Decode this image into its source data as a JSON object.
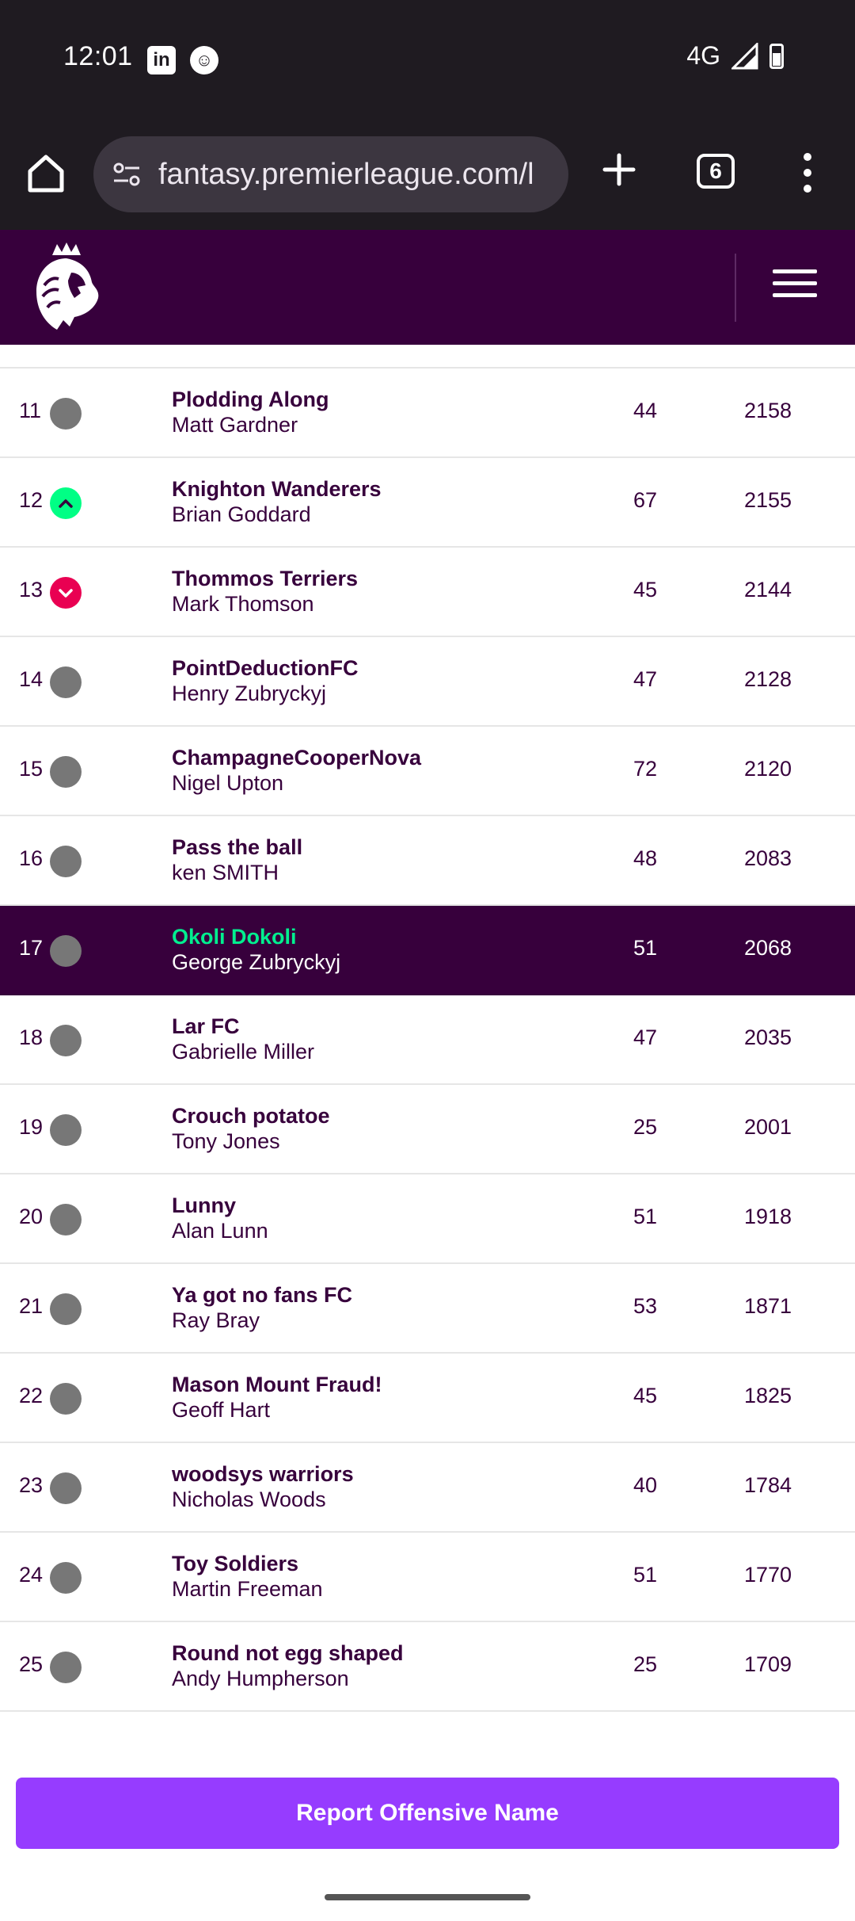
{
  "status_bar": {
    "time": "12:01",
    "notification_icons": [
      "linkedin-icon",
      "face-icon"
    ],
    "network": "4G"
  },
  "browser": {
    "url": "fantasy.premierleague.com/l",
    "tab_count": "6"
  },
  "league": {
    "rows": [
      {
        "rank": "11",
        "movement": "same",
        "team": "Plodding Along",
        "manager": "Matt Gardner",
        "gw": "44",
        "total": "2158"
      },
      {
        "rank": "12",
        "movement": "up",
        "team": "Knighton Wanderers",
        "manager": "Brian Goddard",
        "gw": "67",
        "total": "2155"
      },
      {
        "rank": "13",
        "movement": "down",
        "team": "Thommos Terriers",
        "manager": "Mark Thomson",
        "gw": "45",
        "total": "2144"
      },
      {
        "rank": "14",
        "movement": "same",
        "team": "PointDeductionFC",
        "manager": "Henry Zubryckyj",
        "gw": "47",
        "total": "2128"
      },
      {
        "rank": "15",
        "movement": "same",
        "team": "ChampagneCooperNova",
        "manager": "Nigel Upton",
        "gw": "72",
        "total": "2120"
      },
      {
        "rank": "16",
        "movement": "same",
        "team": "Pass the ball",
        "manager": "ken SMITH",
        "gw": "48",
        "total": "2083"
      },
      {
        "rank": "17",
        "movement": "same",
        "team": "Okoli Dokoli",
        "manager": "George Zubryckyj",
        "gw": "51",
        "total": "2068",
        "highlight": true
      },
      {
        "rank": "18",
        "movement": "same",
        "team": "Lar FC",
        "manager": "Gabrielle Miller",
        "gw": "47",
        "total": "2035"
      },
      {
        "rank": "19",
        "movement": "same",
        "team": "Crouch potatoe",
        "manager": "Tony Jones",
        "gw": "25",
        "total": "2001"
      },
      {
        "rank": "20",
        "movement": "same",
        "team": "Lunny",
        "manager": "Alan Lunn",
        "gw": "51",
        "total": "1918"
      },
      {
        "rank": "21",
        "movement": "same",
        "team": "Ya got no fans FC",
        "manager": "Ray Bray",
        "gw": "53",
        "total": "1871"
      },
      {
        "rank": "22",
        "movement": "same",
        "team": "Mason Mount Fraud!",
        "manager": "Geoff Hart",
        "gw": "45",
        "total": "1825"
      },
      {
        "rank": "23",
        "movement": "same",
        "team": "woodsys warriors",
        "manager": "Nicholas Woods",
        "gw": "40",
        "total": "1784"
      },
      {
        "rank": "24",
        "movement": "same",
        "team": "Toy Soldiers",
        "manager": "Martin Freeman",
        "gw": "51",
        "total": "1770"
      },
      {
        "rank": "25",
        "movement": "same",
        "team": "Round not egg shaped",
        "manager": "Andy Humpherson",
        "gw": "25",
        "total": "1709"
      }
    ]
  },
  "report_button": "Report Offensive Name",
  "colors": {
    "brand_purple": "#37003c",
    "accent_green": "#00ff85",
    "accent_pink": "#e90052",
    "button_purple": "#963cff"
  }
}
